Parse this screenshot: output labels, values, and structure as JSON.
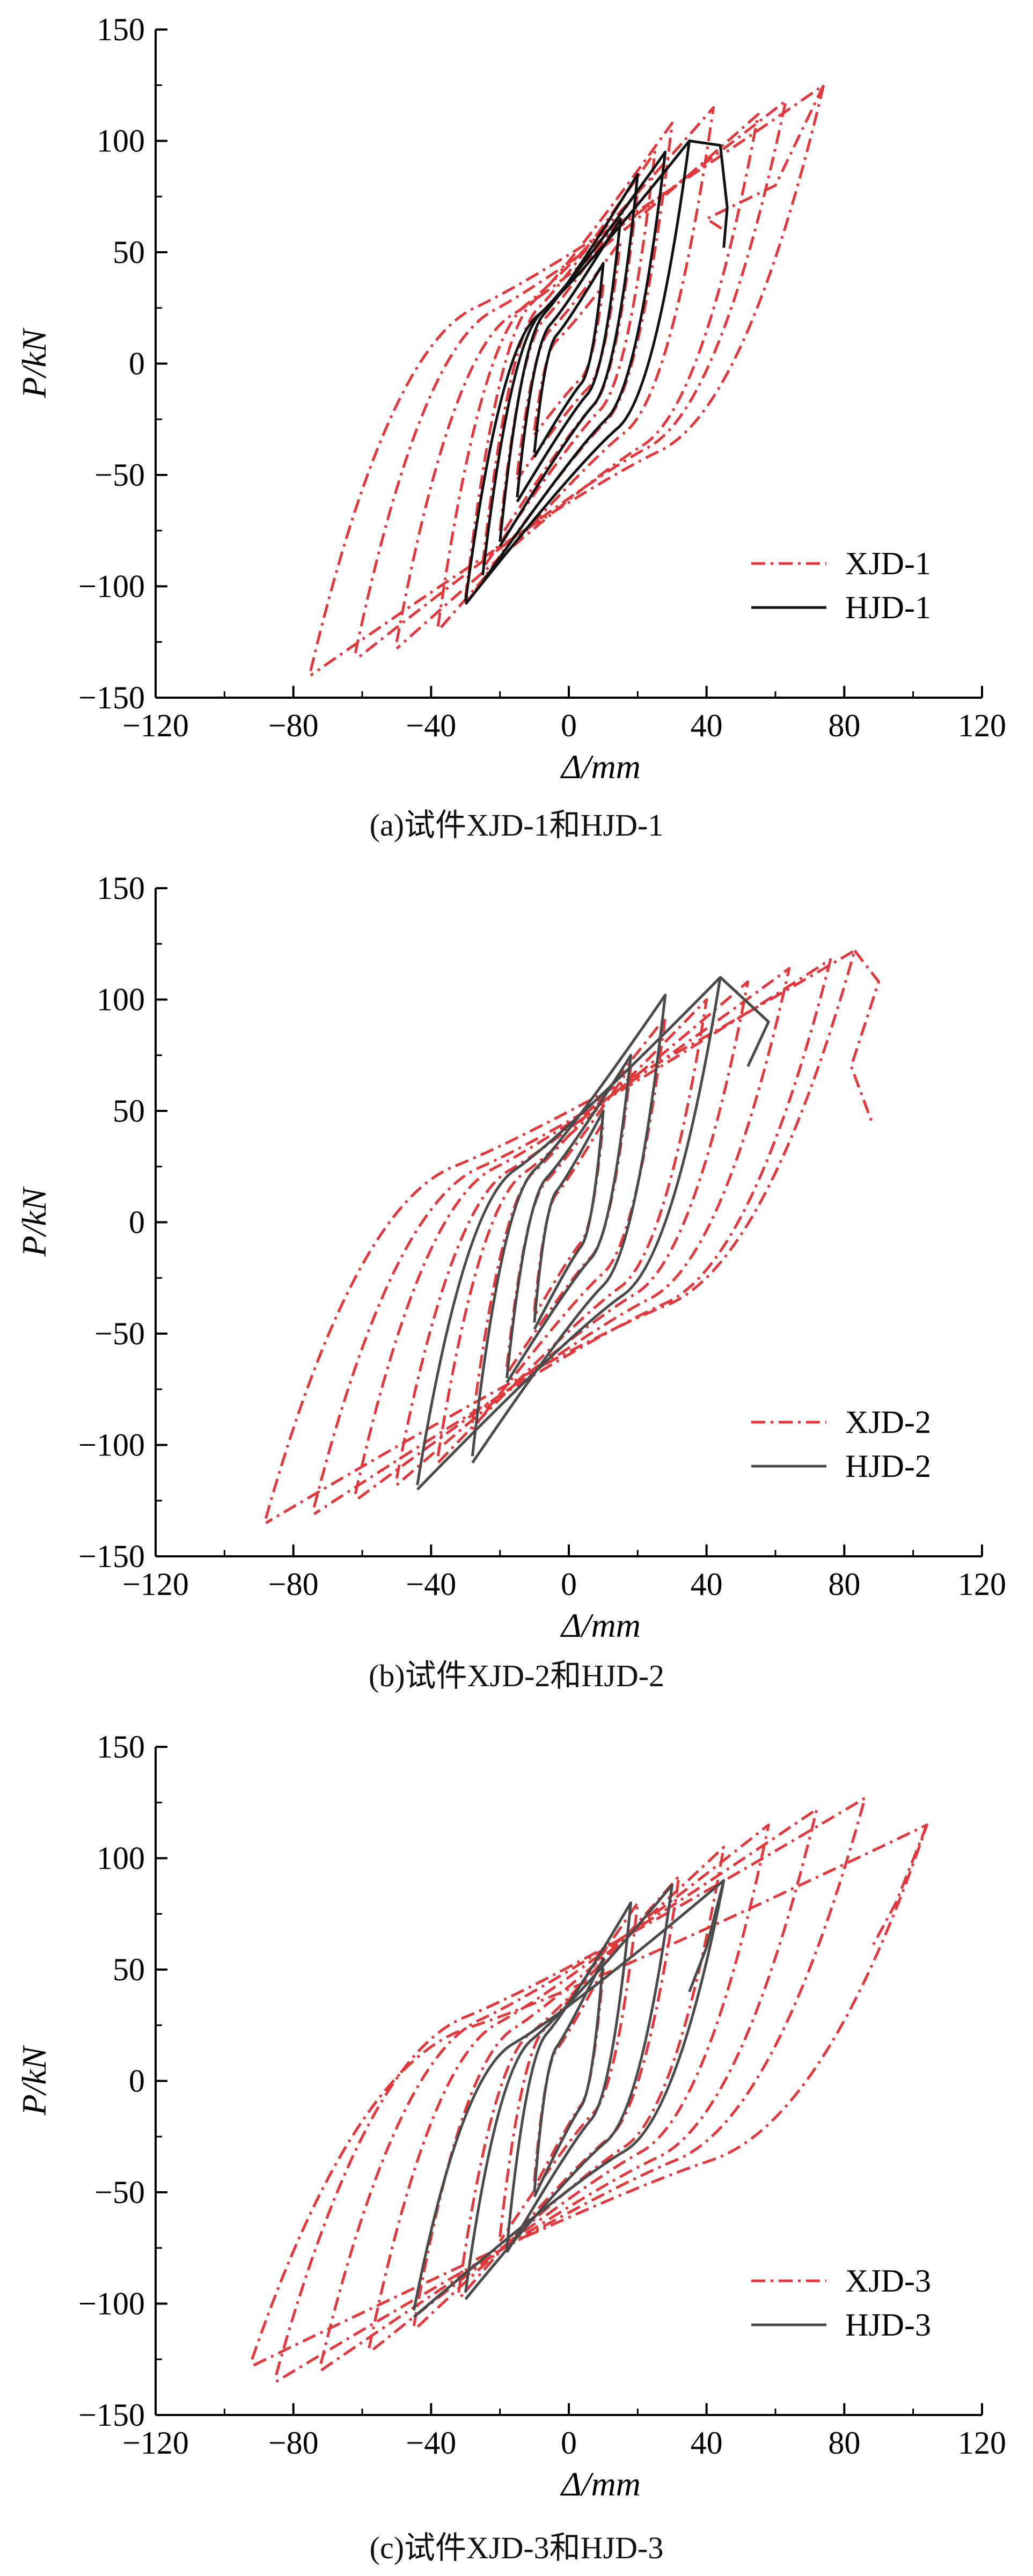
{
  "colors": {
    "xjd": "#e0383c",
    "hjd1": "#111111",
    "hjd": "#4a4a4a",
    "axis": "#000000"
  },
  "axis_labels": {
    "y": "P/kN",
    "x": "Δ/mm"
  },
  "chart_data": [
    {
      "type": "line",
      "caption": "(a)试件XJD-1和HJD-1",
      "xlabel": "Δ/mm",
      "ylabel": "P/kN",
      "xlim": [
        -120,
        120
      ],
      "ylim": [
        -150,
        150
      ],
      "xticks": [
        -120,
        -80,
        -40,
        0,
        40,
        80,
        120
      ],
      "yticks": [
        -150,
        -100,
        -50,
        0,
        50,
        100,
        150
      ],
      "grid": false,
      "legend_position": "bottom-right",
      "series": [
        {
          "name": "XJD-1",
          "style": "dash-dot",
          "color": "#e0383c",
          "loops": [
            [
              [
                -10,
                -30
              ],
              [
                10,
                35
              ],
              [
                -10,
                -32
              ]
            ],
            [
              [
                -15,
                -50
              ],
              [
                15,
                55
              ],
              [
                -15,
                -52
              ]
            ],
            [
              [
                -20,
                -75
              ],
              [
                20,
                78
              ],
              [
                -20,
                -78
              ]
            ],
            [
              [
                -25,
                -90
              ],
              [
                25,
                95
              ],
              [
                -25,
                -92
              ]
            ],
            [
              [
                -30,
                -105
              ],
              [
                30,
                108
              ],
              [
                -30,
                -108
              ]
            ],
            [
              [
                -38,
                -118
              ],
              [
                42,
                115
              ],
              [
                -38,
                -120
              ]
            ],
            [
              [
                -50,
                -125
              ],
              [
                55,
                112
              ],
              [
                -50,
                -128
              ]
            ],
            [
              [
                -62,
                -130
              ],
              [
                63,
                118
              ],
              [
                -62,
                -133
              ]
            ],
            [
              [
                -75,
                -138
              ],
              [
                74,
                125
              ],
              [
                -75,
                -140
              ]
            ]
          ],
          "ending": [
            [
              74,
              125
            ],
            [
              60,
              80
            ],
            [
              40,
              65
            ],
            [
              45,
              60
            ]
          ]
        },
        {
          "name": "HJD-1",
          "style": "solid",
          "color": "#111111",
          "loops": [
            [
              [
                -10,
                -40
              ],
              [
                10,
                45
              ],
              [
                -10,
                -42
              ]
            ],
            [
              [
                -15,
                -60
              ],
              [
                15,
                65
              ],
              [
                -15,
                -62
              ]
            ],
            [
              [
                -20,
                -80
              ],
              [
                20,
                85
              ],
              [
                -20,
                -82
              ]
            ],
            [
              [
                -25,
                -95
              ],
              [
                28,
                95
              ],
              [
                -25,
                -98
              ]
            ],
            [
              [
                -30,
                -107
              ],
              [
                35,
                100
              ],
              [
                -30,
                -108
              ]
            ]
          ],
          "ending": [
            [
              35,
              100
            ],
            [
              44,
              98
            ],
            [
              46,
              70
            ],
            [
              45,
              52
            ]
          ]
        }
      ]
    },
    {
      "type": "line",
      "caption": "(b)试件XJD-2和HJD-2",
      "xlabel": "Δ/mm",
      "ylabel": "P/kN",
      "xlim": [
        -120,
        120
      ],
      "ylim": [
        -150,
        150
      ],
      "xticks": [
        -120,
        -80,
        -40,
        0,
        40,
        80,
        120
      ],
      "yticks": [
        -150,
        -100,
        -50,
        0,
        50,
        100,
        150
      ],
      "grid": false,
      "legend_position": "bottom-right",
      "series": [
        {
          "name": "XJD-2",
          "style": "dash-dot",
          "color": "#e0383c",
          "loops": [
            [
              [
                -10,
                -40
              ],
              [
                10,
                45
              ],
              [
                -10,
                -42
              ]
            ],
            [
              [
                -18,
                -65
              ],
              [
                18,
                70
              ],
              [
                -18,
                -68
              ]
            ],
            [
              [
                -28,
                -90
              ],
              [
                28,
                92
              ],
              [
                -28,
                -93
              ]
            ],
            [
              [
                -38,
                -105
              ],
              [
                40,
                100
              ],
              [
                -38,
                -108
              ]
            ],
            [
              [
                -50,
                -115
              ],
              [
                52,
                108
              ],
              [
                -50,
                -118
              ]
            ],
            [
              [
                -62,
                -122
              ],
              [
                64,
                114
              ],
              [
                -62,
                -125
              ]
            ],
            [
              [
                -74,
                -128
              ],
              [
                76,
                118
              ],
              [
                -74,
                -131
              ]
            ],
            [
              [
                -88,
                -133
              ],
              [
                83,
                122
              ],
              [
                -88,
                -135
              ]
            ]
          ],
          "ending": [
            [
              83,
              122
            ],
            [
              90,
              108
            ],
            [
              82,
              70
            ],
            [
              88,
              45
            ]
          ]
        },
        {
          "name": "HJD-2",
          "style": "solid",
          "color": "#4a4a4a",
          "loops": [
            [
              [
                -10,
                -45
              ],
              [
                10,
                50
              ],
              [
                -10,
                -48
              ]
            ],
            [
              [
                -18,
                -70
              ],
              [
                18,
                75
              ],
              [
                -18,
                -72
              ]
            ],
            [
              [
                -28,
                -105
              ],
              [
                28,
                102
              ],
              [
                -28,
                -108
              ]
            ],
            [
              [
                -44,
                -118
              ],
              [
                44,
                110
              ],
              [
                -44,
                -120
              ]
            ]
          ],
          "ending": [
            [
              44,
              110
            ],
            [
              58,
              90
            ],
            [
              52,
              70
            ]
          ]
        }
      ]
    },
    {
      "type": "line",
      "caption": "(c)试件XJD-3和HJD-3",
      "xlabel": "Δ/mm",
      "ylabel": "P/kN",
      "xlim": [
        -120,
        120
      ],
      "ylim": [
        -150,
        150
      ],
      "xticks": [
        -120,
        -80,
        -40,
        0,
        40,
        80,
        120
      ],
      "yticks": [
        -150,
        -100,
        -50,
        0,
        50,
        100,
        150
      ],
      "grid": false,
      "legend_position": "bottom-right",
      "series": [
        {
          "name": "XJD-3",
          "style": "dash-dot",
          "color": "#e0383c",
          "loops": [
            [
              [
                -10,
                -45
              ],
              [
                10,
                50
              ],
              [
                -10,
                -48
              ]
            ],
            [
              [
                -20,
                -70
              ],
              [
                20,
                80
              ],
              [
                -20,
                -72
              ]
            ],
            [
              [
                -32,
                -95
              ],
              [
                32,
                92
              ],
              [
                -32,
                -98
              ]
            ],
            [
              [
                -45,
                -110
              ],
              [
                45,
                105
              ],
              [
                -45,
                -112
              ]
            ],
            [
              [
                -58,
                -120
              ],
              [
                58,
                115
              ],
              [
                -58,
                -122
              ]
            ],
            [
              [
                -72,
                -127
              ],
              [
                72,
                122
              ],
              [
                -72,
                -130
              ]
            ],
            [
              [
                -85,
                -132
              ],
              [
                86,
                127
              ],
              [
                -85,
                -135
              ]
            ],
            [
              [
                -92,
                -125
              ],
              [
                104,
                115
              ],
              [
                -92,
                -128
              ]
            ]
          ],
          "ending": [
            [
              104,
              115
            ],
            [
              95,
              80
            ],
            [
              88,
              60
            ]
          ]
        },
        {
          "name": "HJD-3",
          "style": "solid",
          "color": "#4a4a4a",
          "loops": [
            [
              [
                -10,
                -50
              ],
              [
                10,
                55
              ],
              [
                -10,
                -52
              ]
            ],
            [
              [
                -18,
                -75
              ],
              [
                18,
                80
              ],
              [
                -18,
                -77
              ]
            ],
            [
              [
                -30,
                -95
              ],
              [
                30,
                88
              ],
              [
                -30,
                -98
              ]
            ],
            [
              [
                -45,
                -103
              ],
              [
                45,
                90
              ],
              [
                -45,
                -106
              ]
            ]
          ],
          "ending": [
            [
              45,
              90
            ],
            [
              40,
              60
            ],
            [
              35,
              40
            ]
          ]
        }
      ]
    }
  ]
}
